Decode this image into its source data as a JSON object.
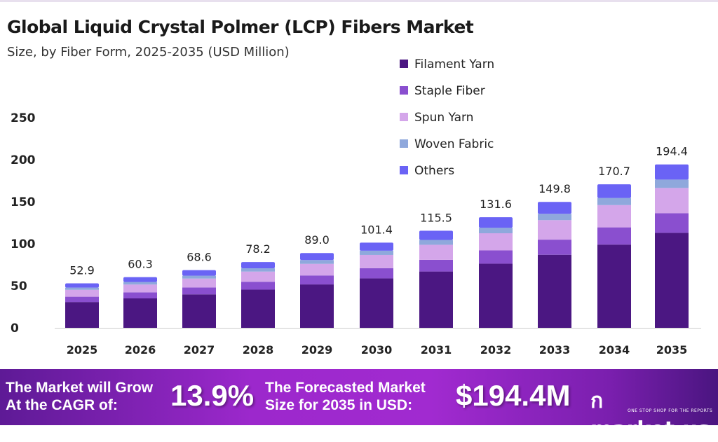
{
  "chart_data": {
    "type": "bar",
    "stacked": true,
    "title": "Global Liquid Crystal Polmer (LCP) Fibers Market",
    "subtitle": "Size, by Fiber Form, 2025-2035 (USD Million)",
    "categories": [
      "2025",
      "2026",
      "2027",
      "2028",
      "2029",
      "2030",
      "2031",
      "2032",
      "2033",
      "2034",
      "2035"
    ],
    "totals": [
      "52.9",
      "60.3",
      "68.6",
      "78.2",
      "89.0",
      "101.4",
      "115.5",
      "131.6",
      "149.8",
      "170.7",
      "194.4"
    ],
    "series": [
      {
        "name": "Filament Yarn",
        "color": "#4b1782",
        "values": [
          30.7,
          35.0,
          39.8,
          45.4,
          51.6,
          58.8,
          67.0,
          76.3,
          86.9,
          99.0,
          113.0
        ]
      },
      {
        "name": "Staple Fiber",
        "color": "#8a4fcf",
        "values": [
          6.3,
          7.2,
          8.2,
          9.4,
          10.7,
          12.2,
          13.9,
          15.8,
          18.0,
          20.5,
          23.4
        ]
      },
      {
        "name": "Spun Yarn",
        "color": "#d4a6ea",
        "values": [
          8.2,
          9.3,
          10.6,
          12.1,
          13.8,
          15.7,
          17.9,
          20.4,
          23.2,
          26.5,
          30.0
        ]
      },
      {
        "name": "Woven Fabric",
        "color": "#8fa8dc",
        "values": [
          2.6,
          3.0,
          3.4,
          3.9,
          4.5,
          5.1,
          5.8,
          6.6,
          7.5,
          8.5,
          10.0
        ]
      },
      {
        "name": "Others",
        "color": "#6a63f5",
        "values": [
          5.1,
          5.8,
          6.6,
          7.4,
          8.4,
          9.6,
          10.9,
          12.5,
          14.2,
          16.2,
          18.0
        ]
      }
    ],
    "yticks": [
      "0",
      "50",
      "100",
      "150",
      "200",
      "250"
    ],
    "ylim": [
      0,
      250
    ],
    "xlabel": "",
    "ylabel": "",
    "legend": "top-right"
  },
  "footer": {
    "cagr_text1": "The Market will Grow",
    "cagr_text2": "At the CAGR of:",
    "cagr_value": "13.9%",
    "forecast_text1": "The Forecasted Market",
    "forecast_text2": "Size for 2035 in USD:",
    "forecast_value": "$194.4M",
    "brand": "market.us",
    "tagline": "ONE STOP SHOP FOR THE REPORTS"
  }
}
